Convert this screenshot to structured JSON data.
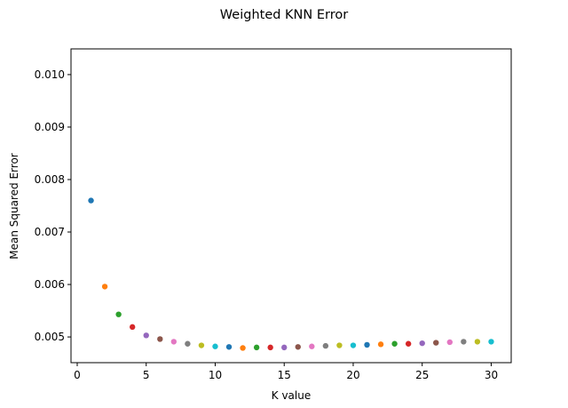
{
  "chart_data": {
    "type": "scatter",
    "title": "Weighted KNN Error",
    "xlabel": "K value",
    "ylabel": "Mean Squared Error",
    "xlim": [
      -0.45,
      31.45
    ],
    "ylim": [
      0.00451,
      0.01049
    ],
    "xticks": [
      {
        "value": 0,
        "label": "0"
      },
      {
        "value": 5,
        "label": "5"
      },
      {
        "value": 10,
        "label": "10"
      },
      {
        "value": 15,
        "label": "15"
      },
      {
        "value": 20,
        "label": "20"
      },
      {
        "value": 25,
        "label": "25"
      },
      {
        "value": 30,
        "label": "30"
      }
    ],
    "yticks": [
      {
        "value": 0.005,
        "label": "0.005"
      },
      {
        "value": 0.006,
        "label": "0.006"
      },
      {
        "value": 0.007,
        "label": "0.007"
      },
      {
        "value": 0.008,
        "label": "0.008"
      },
      {
        "value": 0.009,
        "label": "0.009"
      },
      {
        "value": 0.01,
        "label": "0.010"
      }
    ],
    "grid": false,
    "legend": "none",
    "colors": [
      "#1f77b4",
      "#ff7f0e",
      "#2ca02c",
      "#d62728",
      "#9467bd",
      "#8c564b",
      "#e377c2",
      "#7f7f7f",
      "#bcbd22",
      "#17becf"
    ],
    "points": [
      {
        "x": 1,
        "y": 0.0076
      },
      {
        "x": 2,
        "y": 0.00596
      },
      {
        "x": 3,
        "y": 0.00543
      },
      {
        "x": 4,
        "y": 0.00519
      },
      {
        "x": 5,
        "y": 0.00503
      },
      {
        "x": 6,
        "y": 0.00496
      },
      {
        "x": 7,
        "y": 0.00491
      },
      {
        "x": 8,
        "y": 0.00487
      },
      {
        "x": 9,
        "y": 0.00484
      },
      {
        "x": 10,
        "y": 0.00482
      },
      {
        "x": 11,
        "y": 0.00481
      },
      {
        "x": 12,
        "y": 0.00479
      },
      {
        "x": 13,
        "y": 0.0048
      },
      {
        "x": 14,
        "y": 0.0048
      },
      {
        "x": 15,
        "y": 0.0048
      },
      {
        "x": 16,
        "y": 0.00481
      },
      {
        "x": 17,
        "y": 0.00482
      },
      {
        "x": 18,
        "y": 0.00483
      },
      {
        "x": 19,
        "y": 0.00484
      },
      {
        "x": 20,
        "y": 0.00484
      },
      {
        "x": 21,
        "y": 0.00485
      },
      {
        "x": 22,
        "y": 0.00486
      },
      {
        "x": 23,
        "y": 0.00487
      },
      {
        "x": 24,
        "y": 0.00487
      },
      {
        "x": 25,
        "y": 0.00488
      },
      {
        "x": 26,
        "y": 0.00489
      },
      {
        "x": 27,
        "y": 0.0049
      },
      {
        "x": 28,
        "y": 0.00491
      },
      {
        "x": 29,
        "y": 0.00491
      },
      {
        "x": 30,
        "y": 0.00491
      }
    ]
  }
}
